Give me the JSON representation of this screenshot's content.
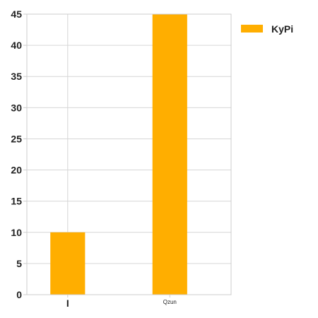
{
  "chart_data": {
    "type": "bar",
    "categories": [
      "I",
      "Qzun"
    ],
    "series": [
      {
        "name": "KyPi",
        "values": [
          10,
          45
        ],
        "color": "#ffae00"
      }
    ],
    "ylim": [
      0,
      45
    ],
    "yticks": [
      0,
      5,
      10,
      15,
      20,
      25,
      30,
      35,
      40,
      45
    ],
    "grid": true,
    "legend_position": "top-right"
  }
}
